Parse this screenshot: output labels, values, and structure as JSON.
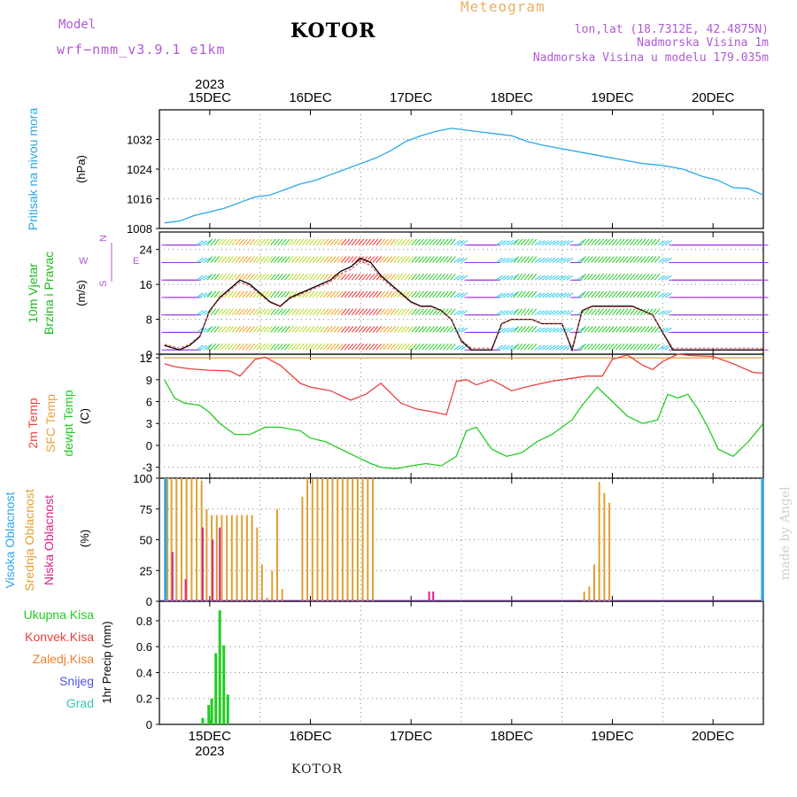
{
  "header": {
    "model_label": "Model",
    "model_name": "wrf−nmm_v3.9.1  e1km",
    "city": "KOTOR",
    "meteogram_label": "Meteogram",
    "lonlat": "lon,lat (18.7312E, 42.4875N)",
    "elevation": "Nadmorska Visina 1m",
    "model_elevation": "Nadmorska Visina u modelu 179.035m"
  },
  "footer": {
    "city": "KOTOR"
  },
  "watermark": "made by Angel",
  "colors": {
    "pressure": "#29a8e8",
    "wind_label": "#22b822",
    "wind_dir_label": "#b05ad6",
    "temp_2m": "#e84040",
    "temp_sfc": "#e8a040",
    "dewpoint": "#22cc22",
    "cloud_high": "#29a8e8",
    "cloud_mid": "#e0a030",
    "cloud_low": "#e0208a",
    "precip_total": "#22cc22",
    "precip_conv": "#e84040",
    "precip_strat": "#f08030",
    "snow": "#5050e8",
    "hail": "#30c8b0"
  },
  "chart_data": [
    {
      "id": "pressure",
      "type": "line",
      "ylabel_name": "Pritisak na nivou mora",
      "ylabel_unit": "(hPa)",
      "ylim": [
        1008,
        1040
      ],
      "yticks": [
        "1008",
        "1016",
        "1024",
        "1032"
      ],
      "x_start_day": 14.5,
      "x_end_day": 20.5,
      "grid": true,
      "series": [
        {
          "x": [
            14.55,
            14.7,
            14.85,
            15.0,
            15.15,
            15.3,
            15.45,
            15.6,
            15.75,
            15.9,
            16.05,
            16.2,
            16.35,
            16.5,
            16.65,
            16.8,
            16.95,
            17.1,
            17.25,
            17.4,
            17.55,
            17.7,
            17.85,
            18.0,
            18.15,
            18.3,
            18.5,
            18.7,
            18.9,
            19.1,
            19.3,
            19.5,
            19.7,
            19.9,
            20.05,
            20.2,
            20.35,
            20.5
          ],
          "values": [
            1009.5,
            1010,
            1011.5,
            1012.5,
            1013.5,
            1015,
            1016.5,
            1017,
            1018.5,
            1020,
            1021,
            1022.5,
            1024,
            1025.5,
            1027,
            1029,
            1031.5,
            1033,
            1034.2,
            1035,
            1034.5,
            1034,
            1033.5,
            1033,
            1031.5,
            1030.5,
            1029.5,
            1028.5,
            1027.5,
            1026.5,
            1025.5,
            1025,
            1024,
            1022,
            1021,
            1019,
            1018.8,
            1017
          ]
        }
      ]
    },
    {
      "id": "wind",
      "type": "line",
      "ylabel_name": "10m Vjetar",
      "ylabel_name2": "Brzina i Pravac",
      "ylabel_unit": "(m/s)",
      "dir_axis": {
        "e": "E",
        "s": "S",
        "n": "N",
        "w": "W"
      },
      "ylim": [
        0,
        28
      ],
      "yticks": [
        "0",
        "8",
        "16",
        "24"
      ],
      "grid": true,
      "series": [
        {
          "name": "speed",
          "x": [
            14.55,
            14.7,
            14.8,
            14.9,
            15.0,
            15.1,
            15.2,
            15.3,
            15.4,
            15.5,
            15.6,
            15.7,
            15.8,
            15.9,
            16.0,
            16.1,
            16.2,
            16.3,
            16.4,
            16.5,
            16.6,
            16.7,
            16.8,
            16.9,
            17.0,
            17.1,
            17.2,
            17.3,
            17.4,
            17.5,
            17.6,
            17.7,
            17.8,
            17.9,
            18.0,
            18.1,
            18.2,
            18.3,
            18.4,
            18.5,
            18.6,
            18.7,
            18.8,
            18.9,
            19.0,
            19.1,
            19.2,
            19.3,
            19.4,
            19.5,
            19.6,
            19.7,
            19.8,
            19.9,
            20.0,
            20.1,
            20.2,
            20.3,
            20.4,
            20.5
          ],
          "values": [
            2,
            1,
            2,
            4,
            10,
            13,
            15,
            17,
            16,
            14,
            12,
            11,
            13,
            14,
            15,
            16,
            17,
            19,
            20,
            22,
            21,
            18,
            16,
            14,
            12,
            11,
            11,
            10,
            8,
            3,
            1,
            1,
            1,
            7,
            8,
            8,
            8,
            7,
            7,
            7,
            1,
            10,
            11,
            11,
            11,
            11,
            11,
            10,
            9,
            5,
            1,
            1,
            1,
            1,
            1,
            1,
            1,
            1,
            1,
            1
          ]
        }
      ],
      "arrow_rows": [
        1,
        5,
        9,
        13,
        17,
        21,
        25
      ]
    },
    {
      "id": "temperature",
      "type": "line",
      "ylabel_names": [
        "2m Temp",
        "SFC Temp",
        "dewpt Temp"
      ],
      "ylabel_unit": "(C)",
      "ylim": [
        -4.5,
        12.5
      ],
      "yticks": [
        "-3",
        "0",
        "3",
        "6",
        "9",
        "12"
      ],
      "grid": true,
      "series": [
        {
          "name": "2m Temp",
          "x": [
            14.55,
            14.65,
            14.8,
            15.0,
            15.2,
            15.3,
            15.45,
            15.55,
            15.7,
            15.9,
            16.0,
            16.2,
            16.4,
            16.55,
            16.7,
            16.9,
            17.05,
            17.25,
            17.35,
            17.45,
            17.55,
            17.65,
            17.8,
            18.0,
            18.2,
            18.4,
            18.5,
            18.6,
            18.75,
            18.9,
            19.0,
            19.15,
            19.3,
            19.4,
            19.5,
            19.65,
            19.8,
            20.0,
            20.2,
            20.4,
            20.5
          ],
          "values": [
            11.2,
            10.8,
            10.5,
            10.3,
            10.2,
            9.5,
            11.8,
            12.1,
            11.0,
            8.5,
            8.0,
            7.5,
            6.2,
            7.0,
            8.5,
            5.8,
            5.0,
            4.5,
            4.2,
            8.8,
            9.0,
            8.3,
            9.0,
            7.5,
            8.2,
            8.8,
            9.0,
            9.2,
            9.5,
            9.5,
            11.8,
            12.4,
            11.0,
            10.4,
            11.5,
            12.5,
            12.3,
            12.2,
            11.2,
            10.0,
            9.9
          ]
        },
        {
          "name": "SFC Temp",
          "x": [
            14.55,
            20.5
          ],
          "values": [
            12,
            12
          ]
        },
        {
          "name": "dewpt Temp",
          "x": [
            14.55,
            14.65,
            14.75,
            14.9,
            15.0,
            15.1,
            15.25,
            15.4,
            15.55,
            15.7,
            15.9,
            16.0,
            16.15,
            16.3,
            16.45,
            16.6,
            16.7,
            16.85,
            17.0,
            17.15,
            17.3,
            17.45,
            17.55,
            17.65,
            17.8,
            17.95,
            18.1,
            18.25,
            18.4,
            18.5,
            18.6,
            18.7,
            18.85,
            19.0,
            19.15,
            19.3,
            19.45,
            19.55,
            19.65,
            19.75,
            19.85,
            19.95,
            20.05,
            20.2,
            20.35,
            20.5
          ],
          "values": [
            9.0,
            6.5,
            5.8,
            5.5,
            4.5,
            3.0,
            1.5,
            1.5,
            2.5,
            2.5,
            2.0,
            1.0,
            0.5,
            -0.5,
            -1.5,
            -2.5,
            -3.0,
            -3.2,
            -2.8,
            -2.5,
            -2.8,
            -1.5,
            2.0,
            2.5,
            -0.5,
            -1.5,
            -1.0,
            0.5,
            1.5,
            2.5,
            3.5,
            5.5,
            8.0,
            6.0,
            4.0,
            3.0,
            3.5,
            7.0,
            6.5,
            7.0,
            5.0,
            2.5,
            -0.5,
            -1.5,
            0.5,
            3.0
          ]
        }
      ]
    },
    {
      "id": "clouds",
      "type": "bar",
      "ylabel_names": [
        "Visoka Oblacnost",
        "Srednja Oblacnost",
        "Niska Oblacnost"
      ],
      "ylabel_unit": "(%)",
      "ylim": [
        0,
        100
      ],
      "yticks": [
        "0",
        "25",
        "50",
        "75",
        "100"
      ],
      "grid": true,
      "series": [
        {
          "name": "Srednja Oblacnost",
          "x": [
            14.58,
            14.62,
            14.67,
            14.72,
            14.77,
            14.82,
            14.87,
            14.92,
            14.97,
            15.02,
            15.07,
            15.12,
            15.17,
            15.22,
            15.27,
            15.32,
            15.37,
            15.42,
            15.47,
            15.52,
            15.57,
            15.62,
            15.67,
            15.72,
            15.92,
            15.97,
            16.02,
            16.07,
            16.12,
            16.17,
            16.22,
            16.27,
            16.32,
            16.37,
            16.42,
            16.47,
            16.52,
            16.57,
            16.62,
            18.72,
            18.77,
            18.82,
            18.87,
            18.92,
            18.97
          ],
          "values": [
            100,
            100,
            100,
            100,
            100,
            100,
            100,
            98,
            75,
            70,
            70,
            70,
            70,
            70,
            70,
            70,
            70,
            70,
            60,
            30,
            3,
            25,
            75,
            10,
            85,
            100,
            100,
            100,
            100,
            100,
            100,
            100,
            100,
            100,
            100,
            100,
            100,
            100,
            100,
            8,
            12,
            30,
            97,
            88,
            80
          ]
        },
        {
          "name": "Niska Oblacnost",
          "x": [
            14.63,
            14.76,
            14.93,
            15.03,
            15.1,
            17.18,
            17.22
          ],
          "values": [
            40,
            18,
            60,
            50,
            60,
            8,
            8
          ]
        },
        {
          "name": "Visoka Oblacnost",
          "x": [
            14.56,
            20.49
          ],
          "values": [
            100,
            100
          ]
        }
      ]
    },
    {
      "id": "precip",
      "type": "bar",
      "legend": [
        "Ukupna Kisa",
        "Konvek.Kisa",
        "Zaledj.Kisa",
        "Snijeg",
        "Grad"
      ],
      "ylabel_unit": "1hr Precip (mm)",
      "ylim": [
        0,
        0.95
      ],
      "yticks": [
        "0",
        "0.2",
        "0.4",
        "0.6",
        "0.8"
      ],
      "grid": true,
      "series": [
        {
          "name": "Ukupna Kisa",
          "x": [
            14.93,
            14.99,
            15.02,
            15.06,
            15.1,
            15.14,
            15.18
          ],
          "values": [
            0.05,
            0.15,
            0.2,
            0.55,
            0.88,
            0.61,
            0.23
          ]
        }
      ]
    }
  ],
  "x_axis": {
    "year": "2023",
    "day_labels": [
      "15DEC",
      "16DEC",
      "17DEC",
      "18DEC",
      "19DEC",
      "20DEC"
    ]
  }
}
